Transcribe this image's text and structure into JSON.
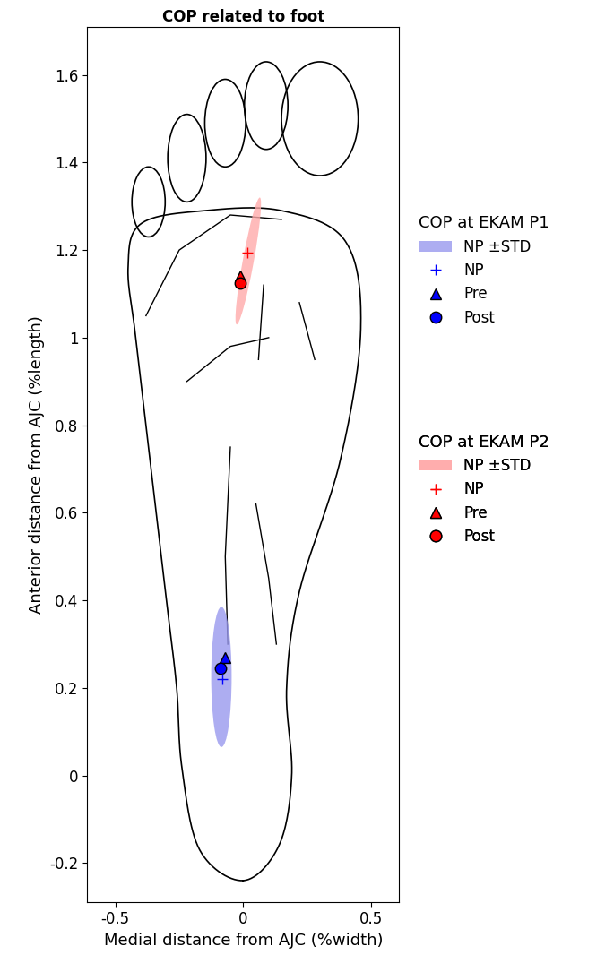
{
  "chart_data": {
    "type": "scatter",
    "title": "COP related to foot",
    "x_label": "Medial distance from AJC (%width)",
    "y_label": "Anterior distance from AJC (%length)",
    "xlim": [
      -0.61,
      0.61
    ],
    "ylim": [
      -0.29,
      1.71
    ],
    "xticks": [
      -0.5,
      0,
      0.5
    ],
    "yticks": [
      -0.2,
      0,
      0.2,
      0.4,
      0.6,
      0.8,
      1,
      1.2,
      1.4,
      1.6
    ],
    "groups": [
      {
        "name": "COP at EKAM P1",
        "color": "#0000ff",
        "band_color": "#9999ee",
        "band_name": "NP ±STD",
        "band_center": [
          -0.085,
          0.225
        ],
        "std": [
          0.04,
          0.16
        ],
        "correlation": 0.0,
        "series": [
          {
            "name": "NP",
            "marker": "plus",
            "x": -0.08,
            "y": 0.22
          },
          {
            "name": "Pre",
            "marker": "triangle",
            "x": -0.07,
            "y": 0.27
          },
          {
            "name": "Post",
            "marker": "circle",
            "x": -0.09,
            "y": 0.245
          }
        ]
      },
      {
        "name": "COP at EKAM P2",
        "color": "#ff0000",
        "band_color": "#ffaaaa",
        "band_name": "NP ±STD",
        "band_center": [
          0.02,
          1.175
        ],
        "std": [
          0.05,
          0.145
        ],
        "correlation": 0.9,
        "series": [
          {
            "name": "NP",
            "marker": "plus",
            "x": 0.015,
            "y": 1.195
          },
          {
            "name": "Pre",
            "marker": "triangle",
            "x": -0.01,
            "y": 1.14
          },
          {
            "name": "Post",
            "marker": "circle",
            "x": -0.01,
            "y": 1.125
          }
        ]
      }
    ]
  }
}
